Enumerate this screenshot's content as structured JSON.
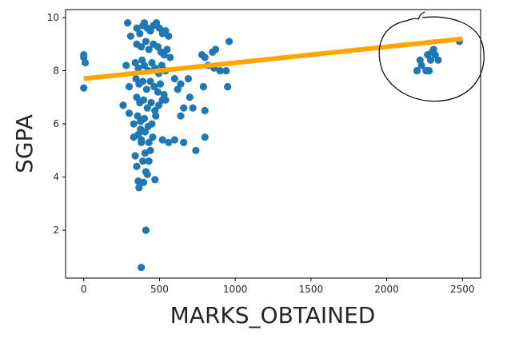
{
  "chart_data": {
    "type": "scatter",
    "xlabel": "MARKS_OBTAINED",
    "ylabel": "SGPA",
    "xlim": [
      -120,
      2620
    ],
    "ylim": [
      0.2,
      10.3
    ],
    "x_ticks": [
      0,
      500,
      1000,
      1500,
      2000,
      2500
    ],
    "y_ticks": [
      2,
      4,
      6,
      8,
      10
    ],
    "x_tick_labels": [
      "0",
      "500",
      "1000",
      "1500",
      "2000",
      "2500"
    ],
    "y_tick_labels": [
      "2",
      "4",
      "6",
      "8",
      "10"
    ],
    "grid": false,
    "legend": "none",
    "series": [
      {
        "kind": "scatter",
        "color": "#1f77b4",
        "points": [
          [
            0,
            8.6
          ],
          [
            0,
            8.5
          ],
          [
            10,
            8.3
          ],
          [
            0,
            7.35
          ],
          [
            290,
            9.8
          ],
          [
            310,
            9.3
          ],
          [
            280,
            8.2
          ],
          [
            300,
            7.4
          ],
          [
            260,
            6.7
          ],
          [
            300,
            6.4
          ],
          [
            330,
            6.0
          ],
          [
            330,
            5.5
          ],
          [
            340,
            4.8
          ],
          [
            350,
            4.4
          ],
          [
            360,
            3.85
          ],
          [
            365,
            3.6
          ],
          [
            375,
            5.8
          ],
          [
            380,
            5.3
          ],
          [
            390,
            4.6
          ],
          [
            395,
            3.8
          ],
          [
            405,
            4.9
          ],
          [
            410,
            4.2
          ],
          [
            420,
            4.1
          ],
          [
            430,
            4.6
          ],
          [
            440,
            5.0
          ],
          [
            380,
            0.6
          ],
          [
            410,
            2.0
          ],
          [
            350,
            9.6
          ],
          [
            370,
            9.4
          ],
          [
            390,
            9.7
          ],
          [
            400,
            9.8
          ],
          [
            420,
            9.6
          ],
          [
            440,
            9.5
          ],
          [
            460,
            9.7
          ],
          [
            480,
            9.8
          ],
          [
            500,
            9.6
          ],
          [
            520,
            9.4
          ],
          [
            540,
            9.5
          ],
          [
            560,
            9.3
          ],
          [
            350,
            9.0
          ],
          [
            380,
            8.9
          ],
          [
            410,
            9.1
          ],
          [
            430,
            8.8
          ],
          [
            460,
            9.0
          ],
          [
            490,
            8.9
          ],
          [
            510,
            8.7
          ],
          [
            530,
            8.6
          ],
          [
            550,
            8.8
          ],
          [
            570,
            8.5
          ],
          [
            340,
            8.3
          ],
          [
            360,
            8.1
          ],
          [
            385,
            8.4
          ],
          [
            400,
            8.2
          ],
          [
            425,
            8.0
          ],
          [
            450,
            8.3
          ],
          [
            470,
            8.1
          ],
          [
            495,
            7.9
          ],
          [
            515,
            8.2
          ],
          [
            540,
            8.0
          ],
          [
            345,
            7.7
          ],
          [
            365,
            7.5
          ],
          [
            390,
            7.6
          ],
          [
            415,
            7.3
          ],
          [
            440,
            7.6
          ],
          [
            465,
            7.4
          ],
          [
            490,
            7.2
          ],
          [
            505,
            7.5
          ],
          [
            530,
            7.1
          ],
          [
            350,
            7.0
          ],
          [
            370,
            6.8
          ],
          [
            395,
            6.9
          ],
          [
            420,
            6.6
          ],
          [
            445,
            6.8
          ],
          [
            470,
            6.5
          ],
          [
            495,
            6.7
          ],
          [
            520,
            6.9
          ],
          [
            355,
            6.3
          ],
          [
            375,
            6.1
          ],
          [
            400,
            6.2
          ],
          [
            425,
            5.9
          ],
          [
            450,
            6.0
          ],
          [
            475,
            6.3
          ],
          [
            360,
            5.6
          ],
          [
            380,
            5.4
          ],
          [
            405,
            5.7
          ],
          [
            430,
            5.3
          ],
          [
            455,
            5.5
          ],
          [
            470,
            3.9
          ],
          [
            520,
            5.4
          ],
          [
            540,
            6.9
          ],
          [
            600,
            7.7
          ],
          [
            620,
            7.3
          ],
          [
            640,
            7.5
          ],
          [
            660,
            6.6
          ],
          [
            690,
            7.7
          ],
          [
            720,
            6.6
          ],
          [
            640,
            6.3
          ],
          [
            600,
            5.4
          ],
          [
            560,
            5.3
          ],
          [
            660,
            5.3
          ],
          [
            700,
            7.0
          ],
          [
            780,
            8.6
          ],
          [
            800,
            8.5
          ],
          [
            820,
            8.2
          ],
          [
            850,
            8.7
          ],
          [
            870,
            8.8
          ],
          [
            860,
            8.1
          ],
          [
            900,
            8.0
          ],
          [
            940,
            8.0
          ],
          [
            960,
            9.1
          ],
          [
            950,
            7.4
          ],
          [
            790,
            7.4
          ],
          [
            800,
            6.5
          ],
          [
            800,
            5.5
          ],
          [
            740,
            5.0
          ],
          [
            2200,
            8.0
          ],
          [
            2220,
            8.4
          ],
          [
            2230,
            8.2
          ],
          [
            2260,
            8.0
          ],
          [
            2280,
            8.0
          ],
          [
            2270,
            8.6
          ],
          [
            2290,
            8.4
          ],
          [
            2300,
            8.7
          ],
          [
            2310,
            8.8
          ],
          [
            2320,
            8.6
          ],
          [
            2340,
            8.4
          ],
          [
            2480,
            9.1
          ]
        ]
      },
      {
        "kind": "regression-line",
        "color": "#ffa500",
        "x": [
          0,
          2500
        ],
        "y": [
          7.7,
          9.2
        ]
      }
    ]
  },
  "annotation": {
    "kind": "hand-drawn-circle",
    "color": "#000000"
  }
}
